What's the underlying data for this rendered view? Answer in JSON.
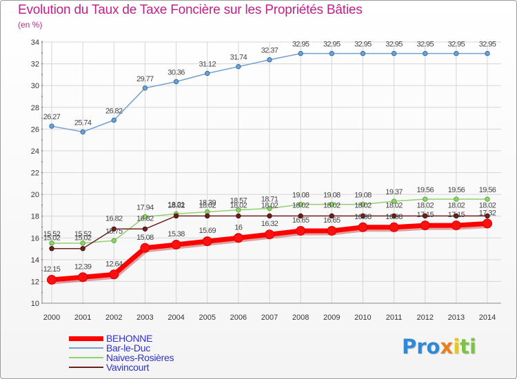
{
  "title": "Evolution du Taux de Taxe Foncière sur les Propriétés Bâties",
  "unit": "(en %)",
  "brand": {
    "parts": [
      "Pro",
      "x",
      "i",
      "ti"
    ],
    "colors": [
      "#2e8ad6",
      "#e8801e",
      "#e8c81e",
      "#7dc243"
    ]
  },
  "chart_data": {
    "type": "line",
    "title": "Evolution du Taux de Taxe Foncière sur les Propriétés Bâties",
    "ylabel": "(en %)",
    "xlabel": "",
    "x": [
      "2000",
      "2001",
      "2002",
      "2003",
      "2004",
      "2005",
      "2006",
      "2007",
      "2008",
      "2009",
      "2010",
      "2011",
      "2012",
      "2013",
      "2014"
    ],
    "ylim": [
      10,
      34
    ],
    "yticks": [
      "10",
      "12",
      "14",
      "16",
      "18",
      "20",
      "22",
      "24",
      "26",
      "28",
      "30",
      "32",
      "34"
    ],
    "grid": true,
    "series": [
      {
        "name": "BEHONNE",
        "color": "#ff0000",
        "values": [
          12.15,
          12.39,
          12.64,
          15.08,
          15.38,
          15.69,
          16,
          16.32,
          16.65,
          16.65,
          16.98,
          16.98,
          17.15,
          17.15,
          17.32
        ],
        "labels": [
          "12.15",
          "12.39",
          "12.64",
          "15.08",
          "15.38",
          "15.69",
          "16",
          "16.32",
          "16.65",
          "16.65",
          "16.98",
          "16.98",
          "17.15",
          "17.15",
          "17.32"
        ]
      },
      {
        "name": "Bar-le-Duc",
        "color": "#6fa0d0",
        "values": [
          26.27,
          25.74,
          26.82,
          29.77,
          30.36,
          31.12,
          31.74,
          32.37,
          32.95,
          32.95,
          32.95,
          32.95,
          32.95,
          32.95,
          32.95
        ],
        "labels": [
          "26.27",
          "25.74",
          "26.82",
          "29.77",
          "30.36",
          "31.12",
          "31.74",
          "32.37",
          "32.95",
          "32.95",
          "32.95",
          "32.95",
          "32.95",
          "32.95",
          "32.95"
        ]
      },
      {
        "name": "Naives-Rosières",
        "color": "#90d070",
        "values": [
          15.52,
          15.52,
          15.75,
          17.94,
          18.21,
          18.39,
          18.57,
          18.71,
          19.08,
          19.08,
          19.08,
          19.37,
          19.56,
          19.56,
          19.56
        ],
        "labels": [
          "15.52",
          "15.52",
          "15.75",
          "17.94",
          "18.21",
          "18.39",
          "18.57",
          "18.71",
          "19.08",
          "19.08",
          "19.08",
          "19.37",
          "19.56",
          "19.56",
          "19.56"
        ]
      },
      {
        "name": "Vavincourt",
        "color": "#6b1f1f",
        "values": [
          15.02,
          15.02,
          16.82,
          16.82,
          18.02,
          18.02,
          18.02,
          18.02,
          18.02,
          18.02,
          18.02,
          18.02,
          18.02,
          18.02,
          18.02
        ],
        "labels": [
          "15.02",
          "15.02",
          "16.82",
          "16.82",
          "18.02",
          "18.02",
          "18.02",
          "18.02",
          "18.02",
          "18.02",
          "18.02",
          "18.02",
          "18.02",
          "18.02",
          "18.02"
        ]
      }
    ]
  }
}
